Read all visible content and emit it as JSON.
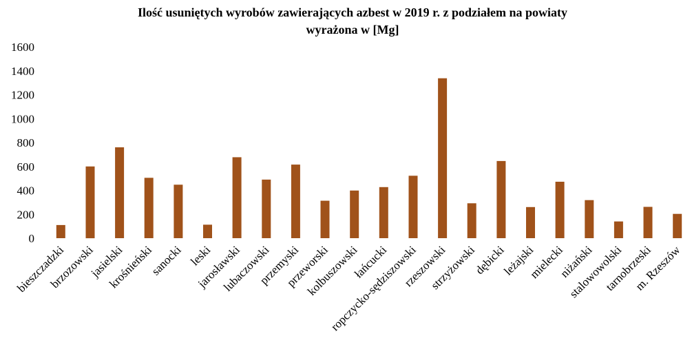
{
  "chart_data": {
    "type": "bar",
    "title": "Ilość usuniętych wyrobów zawierających azbest w 2019 r. z podziałem na powiaty",
    "subtitle": "wyrażona w [Mg]",
    "xlabel": "",
    "ylabel": "",
    "ylim": [
      0,
      1600
    ],
    "yticks": [
      "0",
      "200",
      "400",
      "600",
      "800",
      "1000",
      "1200",
      "1400",
      "1600"
    ],
    "grid": false,
    "legend": "none",
    "bar_color": "#A0521A",
    "categories": [
      "bieszczadzki",
      "brzozowski",
      "jasielski",
      "krośnieński",
      "sanocki",
      "leski",
      "jarosławski",
      "lubaczowski",
      "przemyski",
      "przeworski",
      "kolbuszowski",
      "łańcucki",
      "ropczycko-sędziszowski",
      "rzeszowski",
      "strzyżowski",
      "dębicki",
      "leżajski",
      "mielecki",
      "niżański",
      "stalowowolski",
      "tarnobrzeski",
      "m. Rzeszów"
    ],
    "values": [
      110,
      600,
      760,
      505,
      447,
      113,
      677,
      490,
      615,
      313,
      398,
      427,
      522,
      1337,
      292,
      645,
      260,
      472,
      318,
      140,
      262,
      203
    ]
  }
}
